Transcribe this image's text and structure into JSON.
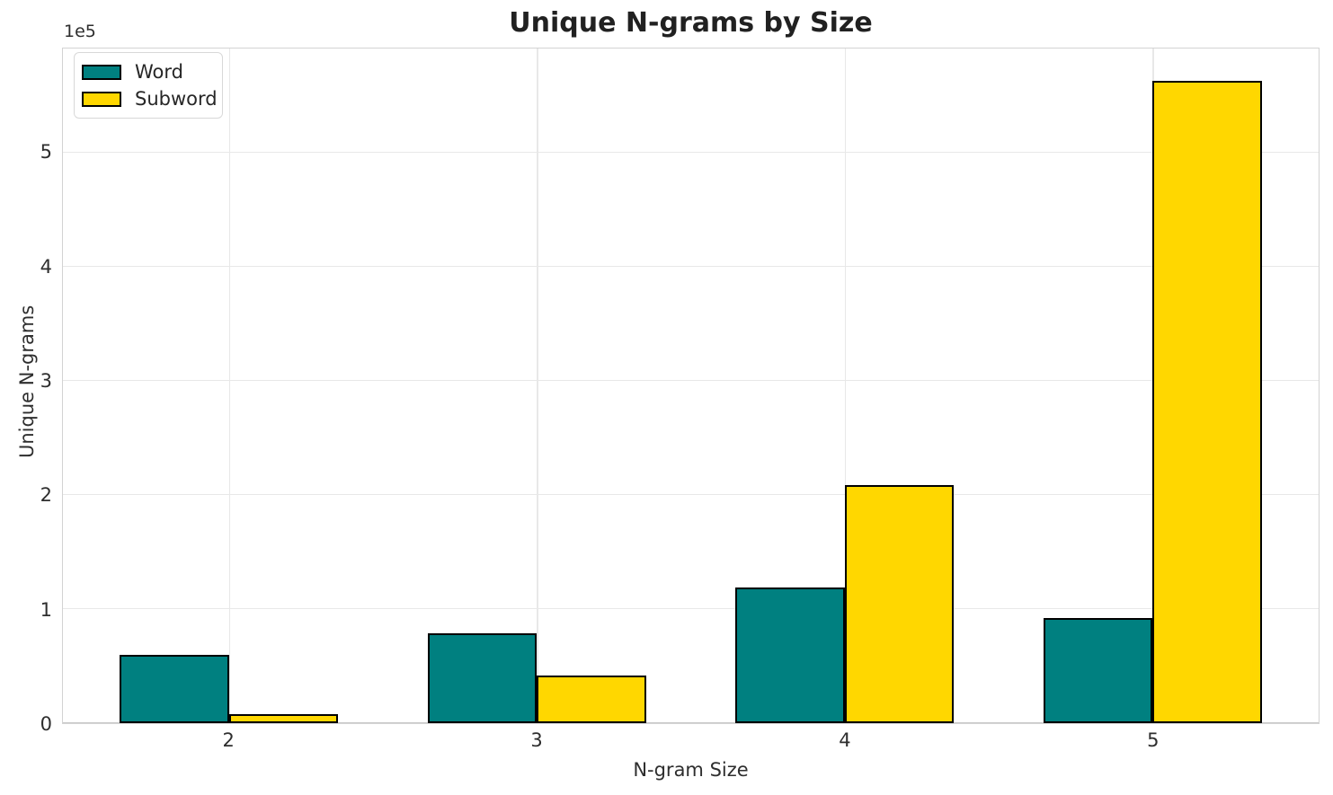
{
  "chart_data": {
    "type": "bar",
    "title": "Unique N-grams by Size",
    "xlabel": "N-gram Size",
    "ylabel": "Unique N-grams",
    "offset_text": "1e5",
    "categories": [
      "2",
      "3",
      "4",
      "5"
    ],
    "series": [
      {
        "name": "Word",
        "color": "#008080",
        "values": [
          60000,
          79000,
          119000,
          92000
        ]
      },
      {
        "name": "Subword",
        "color": "#FFD700",
        "values": [
          8000,
          42000,
          209000,
          563000
        ]
      }
    ],
    "y_ticks": [
      {
        "label": "0",
        "value": 0
      },
      {
        "label": "1",
        "value": 100000
      },
      {
        "label": "2",
        "value": 200000
      },
      {
        "label": "3",
        "value": 300000
      },
      {
        "label": "4",
        "value": 400000
      },
      {
        "label": "5",
        "value": 500000
      }
    ],
    "ylim": [
      0,
      591500
    ],
    "xlim": [
      -0.54,
      3.54
    ],
    "bar_width": 0.355,
    "bar_edge_color": "#000000",
    "grid": true,
    "legend_position": "upper left"
  }
}
